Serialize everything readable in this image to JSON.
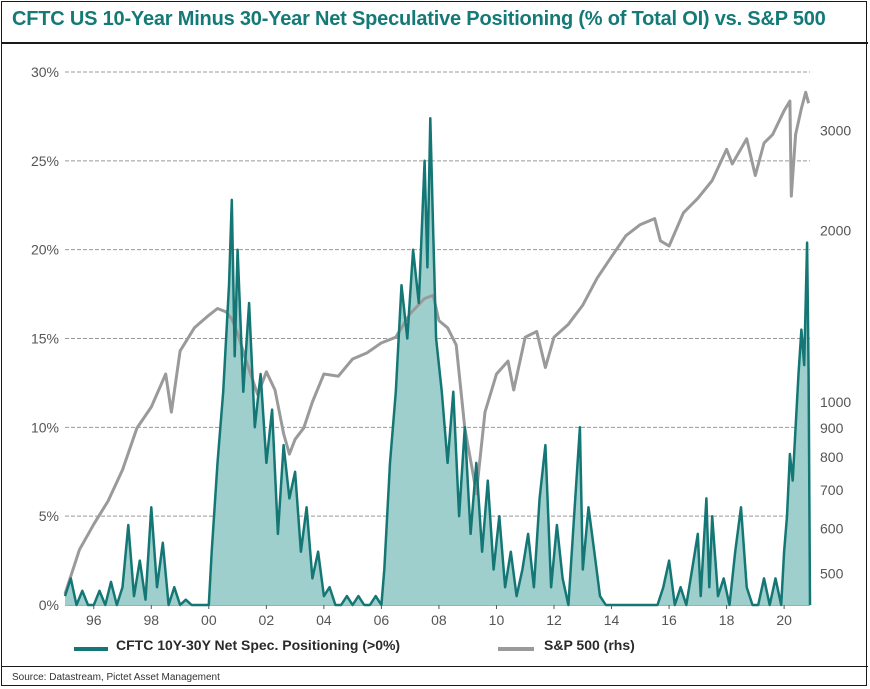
{
  "title": "CFTC US 10-Year Minus 30-Year Net Speculative Positioning (% of Total OI) vs. S&P 500",
  "source": "Source: Datastream, Pictet Asset Management",
  "legend": {
    "cftc": "CFTC 10Y-30Y Net Spec. Positioning (>0%)",
    "sp500": "S&P 500 (rhs)"
  },
  "colors": {
    "title": "#137a77",
    "cftc_line": "#157775",
    "cftc_fill": "#9ecfcc",
    "sp500_line": "#9a9a9a",
    "grid": "#999999",
    "axis_text": "#555555"
  },
  "chart_data": {
    "type": "area",
    "x_tick_labels": [
      "96",
      "98",
      "00",
      "02",
      "04",
      "06",
      "08",
      "10",
      "12",
      "14",
      "16",
      "18",
      "20"
    ],
    "x_tick_years": [
      1996,
      1998,
      2000,
      2002,
      2004,
      2006,
      2008,
      2010,
      2012,
      2014,
      2016,
      2018,
      2020
    ],
    "xlim": [
      1995.0,
      2020.9
    ],
    "left_axis": {
      "ticks": [
        0,
        5,
        10,
        15,
        20,
        25,
        30
      ],
      "tick_labels": [
        "0%",
        "5%",
        "10%",
        "15%",
        "20%",
        "25%",
        "30%"
      ],
      "ylim": [
        0,
        30
      ]
    },
    "right_axis": {
      "scale": "log",
      "ticks": [
        500,
        600,
        700,
        800,
        900,
        1000,
        2000,
        3000
      ],
      "tick_labels": [
        "500",
        "600",
        "700",
        "800",
        "900",
        "1000",
        "2000",
        "3000"
      ],
      "ylim": [
        440,
        3800
      ]
    },
    "grid": "horizontal dashed",
    "series": [
      {
        "name": "CFTC 10Y-30Y Net Spec. Positioning (>0%)",
        "axis": "left",
        "style": "filled area",
        "points": [
          [
            1995.0,
            0.5
          ],
          [
            1995.2,
            1.5
          ],
          [
            1995.4,
            0
          ],
          [
            1995.6,
            0.8
          ],
          [
            1995.8,
            0
          ],
          [
            1996.0,
            0
          ],
          [
            1996.2,
            0.8
          ],
          [
            1996.4,
            0
          ],
          [
            1996.6,
            1.3
          ],
          [
            1996.8,
            0
          ],
          [
            1997.0,
            1.0
          ],
          [
            1997.2,
            4.5
          ],
          [
            1997.4,
            0.5
          ],
          [
            1997.6,
            2.5
          ],
          [
            1997.8,
            0.3
          ],
          [
            1998.0,
            5.5
          ],
          [
            1998.2,
            1.0
          ],
          [
            1998.4,
            3.5
          ],
          [
            1998.6,
            0
          ],
          [
            1998.8,
            1.0
          ],
          [
            1999.0,
            0
          ],
          [
            1999.2,
            0.3
          ],
          [
            1999.4,
            0
          ],
          [
            1999.6,
            0
          ],
          [
            1999.8,
            0
          ],
          [
            2000.0,
            0
          ],
          [
            2000.1,
            3.0
          ],
          [
            2000.3,
            8.0
          ],
          [
            2000.5,
            12.0
          ],
          [
            2000.7,
            18.0
          ],
          [
            2000.8,
            22.8
          ],
          [
            2000.9,
            14.0
          ],
          [
            2001.0,
            20.0
          ],
          [
            2001.2,
            12.0
          ],
          [
            2001.4,
            17.0
          ],
          [
            2001.6,
            10.0
          ],
          [
            2001.8,
            13.0
          ],
          [
            2002.0,
            8.0
          ],
          [
            2002.2,
            11.0
          ],
          [
            2002.4,
            4.0
          ],
          [
            2002.6,
            9.0
          ],
          [
            2002.8,
            6.0
          ],
          [
            2003.0,
            7.5
          ],
          [
            2003.2,
            3.0
          ],
          [
            2003.4,
            5.5
          ],
          [
            2003.6,
            1.5
          ],
          [
            2003.8,
            3.0
          ],
          [
            2004.0,
            0.5
          ],
          [
            2004.2,
            1.0
          ],
          [
            2004.4,
            0
          ],
          [
            2004.6,
            0
          ],
          [
            2004.8,
            0.5
          ],
          [
            2005.0,
            0
          ],
          [
            2005.2,
            0.5
          ],
          [
            2005.4,
            0
          ],
          [
            2005.6,
            0
          ],
          [
            2005.8,
            0.5
          ],
          [
            2006.0,
            0
          ],
          [
            2006.1,
            2.0
          ],
          [
            2006.3,
            8.0
          ],
          [
            2006.5,
            12.0
          ],
          [
            2006.7,
            18.0
          ],
          [
            2006.9,
            15.0
          ],
          [
            2007.1,
            20.0
          ],
          [
            2007.3,
            17.0
          ],
          [
            2007.5,
            25.0
          ],
          [
            2007.6,
            19.0
          ],
          [
            2007.7,
            27.4
          ],
          [
            2007.8,
            21.0
          ],
          [
            2007.9,
            15.0
          ],
          [
            2008.1,
            12.0
          ],
          [
            2008.3,
            8.0
          ],
          [
            2008.5,
            12.0
          ],
          [
            2008.7,
            5.0
          ],
          [
            2008.9,
            10.0
          ],
          [
            2009.1,
            4.0
          ],
          [
            2009.3,
            8.0
          ],
          [
            2009.5,
            3.0
          ],
          [
            2009.7,
            7.0
          ],
          [
            2009.9,
            2.0
          ],
          [
            2010.1,
            5.0
          ],
          [
            2010.3,
            1.0
          ],
          [
            2010.5,
            3.0
          ],
          [
            2010.7,
            0.5
          ],
          [
            2010.9,
            2.0
          ],
          [
            2011.1,
            4.0
          ],
          [
            2011.3,
            1.0
          ],
          [
            2011.5,
            6.0
          ],
          [
            2011.7,
            9.0
          ],
          [
            2011.9,
            1.0
          ],
          [
            2012.1,
            4.5
          ],
          [
            2012.3,
            1.5
          ],
          [
            2012.5,
            0
          ],
          [
            2012.7,
            5.0
          ],
          [
            2012.9,
            10.0
          ],
          [
            2013.0,
            2.0
          ],
          [
            2013.2,
            5.5
          ],
          [
            2013.4,
            3.0
          ],
          [
            2013.6,
            0.5
          ],
          [
            2013.8,
            0
          ],
          [
            2014.0,
            0
          ],
          [
            2014.4,
            0
          ],
          [
            2014.8,
            0
          ],
          [
            2015.2,
            0
          ],
          [
            2015.6,
            0
          ],
          [
            2015.8,
            1.0
          ],
          [
            2016.0,
            2.5
          ],
          [
            2016.2,
            0
          ],
          [
            2016.4,
            1.0
          ],
          [
            2016.6,
            0
          ],
          [
            2016.8,
            2.0
          ],
          [
            2017.0,
            4.0
          ],
          [
            2017.1,
            0.5
          ],
          [
            2017.3,
            6.0
          ],
          [
            2017.4,
            1.0
          ],
          [
            2017.5,
            5.0
          ],
          [
            2017.7,
            0.5
          ],
          [
            2017.9,
            1.5
          ],
          [
            2018.1,
            0
          ],
          [
            2018.3,
            3.0
          ],
          [
            2018.5,
            5.5
          ],
          [
            2018.7,
            1.0
          ],
          [
            2018.9,
            0
          ],
          [
            2019.1,
            0
          ],
          [
            2019.3,
            1.5
          ],
          [
            2019.5,
            0
          ],
          [
            2019.7,
            1.5
          ],
          [
            2019.9,
            0
          ],
          [
            2020.0,
            3.0
          ],
          [
            2020.1,
            5.0
          ],
          [
            2020.2,
            8.5
          ],
          [
            2020.3,
            7.0
          ],
          [
            2020.4,
            10.0
          ],
          [
            2020.5,
            13.0
          ],
          [
            2020.6,
            15.5
          ],
          [
            2020.7,
            13.5
          ],
          [
            2020.8,
            20.4
          ],
          [
            2020.85,
            13.0
          ],
          [
            2020.9,
            0
          ]
        ]
      },
      {
        "name": "S&P 500 (rhs)",
        "axis": "right",
        "style": "line",
        "points": [
          [
            1995.0,
            460
          ],
          [
            1995.5,
            550
          ],
          [
            1996.0,
            610
          ],
          [
            1996.5,
            670
          ],
          [
            1997.0,
            760
          ],
          [
            1997.5,
            900
          ],
          [
            1998.0,
            980
          ],
          [
            1998.5,
            1120
          ],
          [
            1998.7,
            960
          ],
          [
            1999.0,
            1230
          ],
          [
            1999.5,
            1350
          ],
          [
            2000.0,
            1420
          ],
          [
            2000.3,
            1460
          ],
          [
            2000.6,
            1440
          ],
          [
            2000.8,
            1400
          ],
          [
            2001.0,
            1320
          ],
          [
            2001.3,
            1180
          ],
          [
            2001.7,
            1030
          ],
          [
            2002.0,
            1130
          ],
          [
            2002.3,
            1050
          ],
          [
            2002.6,
            880
          ],
          [
            2002.8,
            810
          ],
          [
            2003.0,
            860
          ],
          [
            2003.3,
            900
          ],
          [
            2003.6,
            1000
          ],
          [
            2004.0,
            1120
          ],
          [
            2004.5,
            1110
          ],
          [
            2005.0,
            1190
          ],
          [
            2005.5,
            1220
          ],
          [
            2006.0,
            1270
          ],
          [
            2006.5,
            1300
          ],
          [
            2007.0,
            1430
          ],
          [
            2007.5,
            1520
          ],
          [
            2007.8,
            1540
          ],
          [
            2008.0,
            1390
          ],
          [
            2008.3,
            1350
          ],
          [
            2008.6,
            1260
          ],
          [
            2008.9,
            900
          ],
          [
            2009.2,
            740
          ],
          [
            2009.3,
            690
          ],
          [
            2009.6,
            960
          ],
          [
            2010.0,
            1120
          ],
          [
            2010.4,
            1180
          ],
          [
            2010.6,
            1050
          ],
          [
            2011.0,
            1300
          ],
          [
            2011.4,
            1330
          ],
          [
            2011.7,
            1150
          ],
          [
            2012.0,
            1300
          ],
          [
            2012.5,
            1370
          ],
          [
            2013.0,
            1480
          ],
          [
            2013.5,
            1650
          ],
          [
            2014.0,
            1800
          ],
          [
            2014.5,
            1960
          ],
          [
            2015.0,
            2050
          ],
          [
            2015.5,
            2100
          ],
          [
            2015.7,
            1920
          ],
          [
            2016.0,
            1880
          ],
          [
            2016.5,
            2150
          ],
          [
            2017.0,
            2280
          ],
          [
            2017.5,
            2450
          ],
          [
            2018.0,
            2780
          ],
          [
            2018.2,
            2620
          ],
          [
            2018.7,
            2900
          ],
          [
            2019.0,
            2500
          ],
          [
            2019.3,
            2850
          ],
          [
            2019.6,
            2950
          ],
          [
            2020.0,
            3250
          ],
          [
            2020.2,
            3380
          ],
          [
            2020.25,
            2300
          ],
          [
            2020.4,
            2950
          ],
          [
            2020.6,
            3280
          ],
          [
            2020.75,
            3500
          ],
          [
            2020.85,
            3350
          ]
        ]
      }
    ]
  }
}
